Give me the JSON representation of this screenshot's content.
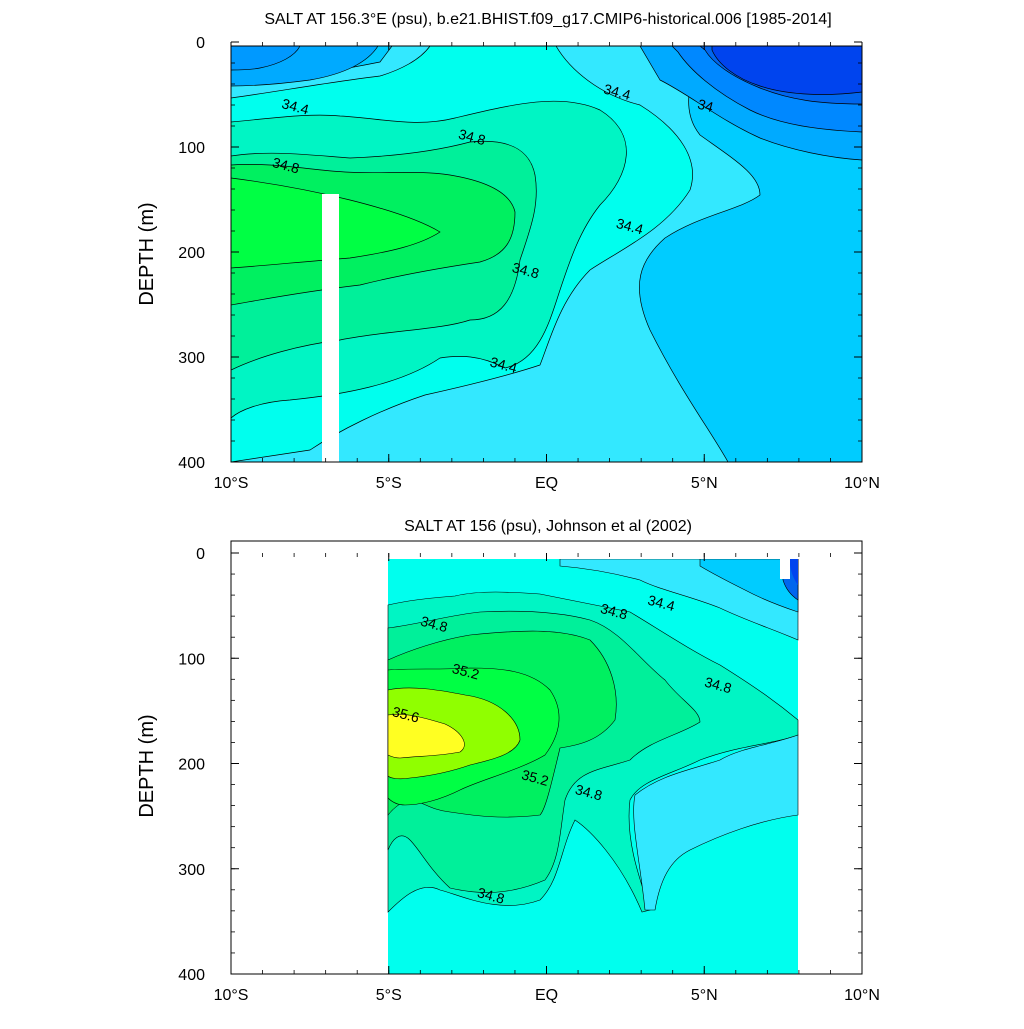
{
  "panels": [
    {
      "title": "SALT AT 156.3°E (psu), b.e21.BHIST.f09_g17.CMIP6-historical.006 [1985-2014]",
      "ylabel": "DEPTH (m)"
    },
    {
      "title": "SALT AT 156 (psu), Johnson et al (2002)",
      "ylabel": "DEPTH (m)"
    }
  ],
  "colors": {
    "s_lt_34": "#0044ee",
    "s_34_34_1": "#0088ff",
    "s_34_1_34_2": "#00aaff",
    "s_34_2_34_3": "#00ccff",
    "s_34_3_34_4": "#33e8ff",
    "s_34_4_34_6": "#00ffee",
    "s_34_6_34_8": "#00f5c4",
    "s_34_8_35_0": "#00f09a",
    "s_35_0_35_2": "#00f060",
    "s_35_2_35_4": "#00ff44",
    "s_35_4_35_6": "#90ff00",
    "s_gt_35_6": "#ffff22",
    "missing": "#ffffff",
    "contour_line": "#000000"
  },
  "chart_data": [
    {
      "type": "contour",
      "title": "SALT AT 156.3°E (psu), b.e21.BHIST.f09_g17.CMIP6-historical.006 [1985-2014]",
      "xlabel": "",
      "ylabel": "DEPTH (m)",
      "xlim": [
        -10,
        10
      ],
      "ylim": [
        400,
        0
      ],
      "x_ticks": [
        -10,
        -5,
        0,
        5,
        10
      ],
      "x_tick_labels": [
        "10°S",
        "5°S",
        "EQ",
        "5°N",
        "10°N"
      ],
      "y_ticks": [
        0,
        100,
        200,
        300,
        400
      ],
      "y_tick_labels": [
        "0",
        "100",
        "200",
        "300",
        "400"
      ],
      "contour_labels": [
        {
          "text": "34.4",
          "x": -8,
          "y": 66
        },
        {
          "text": "34.8",
          "x": -8.3,
          "y": 122
        },
        {
          "text": "34.8",
          "x": -2.4,
          "y": 95
        },
        {
          "text": "34.8",
          "x": -0.7,
          "y": 222
        },
        {
          "text": "34.4",
          "x": -1.4,
          "y": 312
        },
        {
          "text": "34.4",
          "x": 2.2,
          "y": 52
        },
        {
          "text": "34",
          "x": 5,
          "y": 65
        },
        {
          "text": "34.4",
          "x": 2.6,
          "y": 180
        }
      ]
    },
    {
      "type": "contour",
      "title": "SALT AT 156 (psu), Johnson et al (2002)",
      "xlabel": "",
      "ylabel": "DEPTH (m)",
      "xlim": [
        -10,
        10
      ],
      "ylim": [
        400,
        0
      ],
      "x_ticks": [
        -10,
        -5,
        0,
        5,
        10
      ],
      "x_tick_labels": [
        "10°S",
        "5°S",
        "EQ",
        "5°N",
        "10°N"
      ],
      "y_ticks": [
        0,
        100,
        200,
        300,
        400
      ],
      "y_tick_labels": [
        "0",
        "100",
        "200",
        "300",
        "400"
      ],
      "data_extent_x": [
        -5,
        8
      ],
      "contour_labels": [
        {
          "text": "34.8",
          "x": -3.6,
          "y": 72
        },
        {
          "text": "34.8",
          "x": 2.1,
          "y": 60
        },
        {
          "text": "34.4",
          "x": 3.6,
          "y": 52
        },
        {
          "text": "35.2",
          "x": -2.6,
          "y": 117
        },
        {
          "text": "35.6",
          "x": -4.5,
          "y": 158
        },
        {
          "text": "35.2",
          "x": -0.4,
          "y": 218
        },
        {
          "text": "34.8",
          "x": 1.3,
          "y": 232
        },
        {
          "text": "34.8",
          "x": 5.4,
          "y": 130
        },
        {
          "text": "34.8",
          "x": -1.8,
          "y": 330
        }
      ]
    }
  ]
}
